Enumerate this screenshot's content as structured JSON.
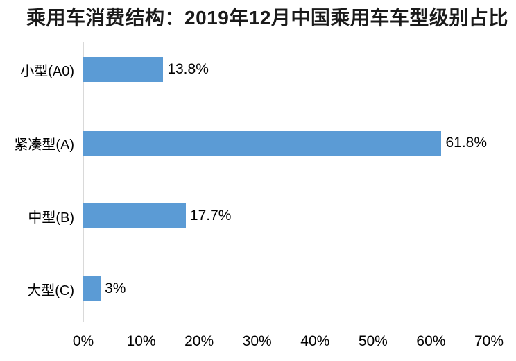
{
  "title": "乘用车消费结构：2019年12月中国乘用车车型级别占比",
  "colors": {
    "bar": "#5b9bd5",
    "axis_line": "#d9d9d9",
    "title_text": "#1a1a1a",
    "label_text": "#000000",
    "background": "#ffffff"
  },
  "chart_data": {
    "type": "bar",
    "orientation": "horizontal",
    "title": "乘用车消费结构：2019年12月中国乘用车车型级别占比",
    "categories": [
      "小型(A0)",
      "紧凑型(A)",
      "中型(B)",
      "大型(C)"
    ],
    "values": [
      13.8,
      61.8,
      17.7,
      3
    ],
    "value_labels": [
      "13.8%",
      "61.8%",
      "17.7%",
      "3%"
    ],
    "xlabel": "",
    "ylabel": "",
    "xlim": [
      0,
      70
    ],
    "x_ticks": [
      "0%",
      "10%",
      "20%",
      "30%",
      "40%",
      "50%",
      "60%",
      "70%"
    ],
    "grid": false,
    "legend": false
  }
}
